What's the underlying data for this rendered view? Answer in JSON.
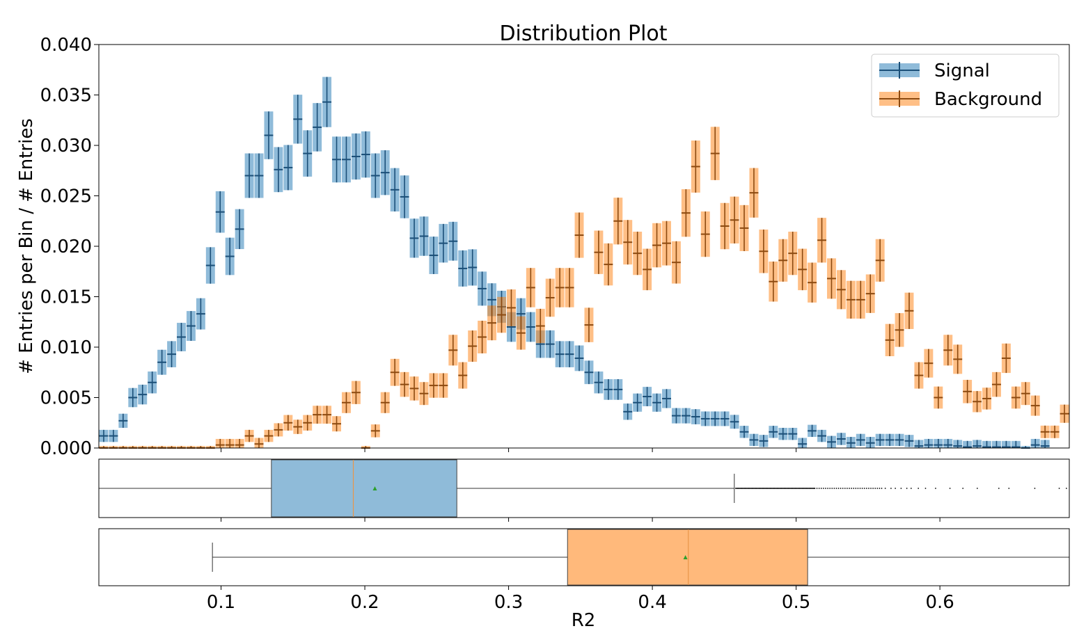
{
  "chart_data": {
    "type": "bar",
    "title": "Distribution Plot",
    "xlabel": "R2",
    "ylabel": "# Entries per Bin / # Entries",
    "xlim": [
      0.015,
      0.69
    ],
    "ylim": [
      0,
      0.04
    ],
    "xticks": [
      "0.1",
      "0.2",
      "0.3",
      "0.4",
      "0.5",
      "0.6"
    ],
    "yticks": [
      "0.000",
      "0.005",
      "0.010",
      "0.015",
      "0.020",
      "0.025",
      "0.030",
      "0.035",
      "0.040"
    ],
    "bin_start": 0.015,
    "bin_width": 0.00675,
    "legend": {
      "position": "top-right",
      "entries": [
        "Signal",
        "Background"
      ]
    },
    "series": [
      {
        "name": "Signal",
        "color": "#1f77b4",
        "values": [
          0.0012,
          0.0012,
          0.0027,
          0.005,
          0.0053,
          0.0065,
          0.0085,
          0.0093,
          0.011,
          0.0121,
          0.0133,
          0.0181,
          0.0234,
          0.019,
          0.0217,
          0.027,
          0.027,
          0.031,
          0.0276,
          0.0278,
          0.0326,
          0.0292,
          0.0318,
          0.0343,
          0.0286,
          0.0286,
          0.0289,
          0.0291,
          0.027,
          0.0273,
          0.0256,
          0.0249,
          0.0208,
          0.021,
          0.0191,
          0.0203,
          0.0205,
          0.0178,
          0.0179,
          0.0158,
          0.0147,
          0.014,
          0.012,
          0.0133,
          0.012,
          0.0103,
          0.0103,
          0.0093,
          0.0093,
          0.0089,
          0.0075,
          0.0065,
          0.0058,
          0.0058,
          0.0036,
          0.0045,
          0.0051,
          0.0045,
          0.0049,
          0.0032,
          0.0032,
          0.0031,
          0.0029,
          0.0029,
          0.0029,
          0.0026,
          0.0016,
          0.0008,
          0.0007,
          0.0016,
          0.0014,
          0.0014,
          0.0004,
          0.0017,
          0.0012,
          0.0006,
          0.0009,
          0.0005,
          0.0008,
          0.0005,
          0.0008,
          0.0008,
          0.0008,
          0.0007,
          0.0002,
          0.0003,
          0.0003,
          0.0003,
          0.0002,
          0.0001,
          0.0002,
          0.0001,
          0.0001,
          0.0001,
          0.0001,
          0.0,
          0.0003,
          0.0002
        ]
      },
      {
        "name": "Background",
        "color": "#ff7f0e",
        "values": [
          0.0,
          0.0,
          0.0,
          0.0,
          0.0,
          0.0,
          0.0,
          0.0,
          0.0,
          0.0,
          0.0,
          0.0,
          0.0003,
          0.0003,
          0.0003,
          0.0012,
          0.0004,
          0.0012,
          0.0018,
          0.0025,
          0.0021,
          0.0025,
          0.0033,
          0.0033,
          0.0024,
          0.0045,
          0.0055,
          0.0,
          0.0017,
          0.0045,
          0.0075,
          0.0063,
          0.0059,
          0.0054,
          0.0062,
          0.0062,
          0.0097,
          0.0072,
          0.0101,
          0.011,
          0.0124,
          0.0132,
          0.0139,
          0.0114,
          0.0159,
          0.0121,
          0.0149,
          0.0159,
          0.0159,
          0.0211,
          0.0122,
          0.0194,
          0.0182,
          0.0225,
          0.0204,
          0.0193,
          0.0177,
          0.0201,
          0.0203,
          0.0184,
          0.0233,
          0.0279,
          0.0212,
          0.0292,
          0.022,
          0.0226,
          0.0218,
          0.0253,
          0.0195,
          0.0165,
          0.0186,
          0.0193,
          0.0177,
          0.0164,
          0.0206,
          0.0168,
          0.0157,
          0.0147,
          0.0147,
          0.0153,
          0.0186,
          0.0107,
          0.0117,
          0.0136,
          0.0072,
          0.0084,
          0.005,
          0.0097,
          0.0088,
          0.0056,
          0.0046,
          0.0049,
          0.0063,
          0.0089,
          0.005,
          0.0054,
          0.0042,
          0.0016,
          0.0016,
          0.0034,
          0.0035
        ]
      }
    ],
    "boxplots": [
      {
        "series": "Signal",
        "whisker_low": 0.015,
        "q1": 0.135,
        "median": 0.192,
        "mean": 0.207,
        "q3": 0.264,
        "whisker_high": 0.457,
        "outliers_from": 0.457
      },
      {
        "series": "Background",
        "whisker_low": 0.094,
        "q1": 0.341,
        "median": 0.425,
        "mean": 0.423,
        "q3": 0.508,
        "whisker_high": 0.69
      }
    ]
  }
}
